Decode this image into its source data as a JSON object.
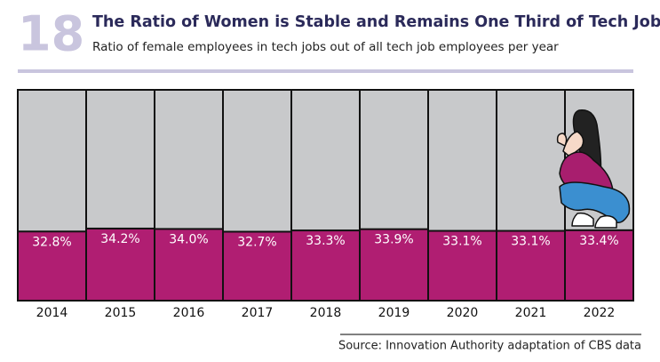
{
  "chart_data": {
    "type": "bar",
    "figure_number": "18",
    "title": "The Ratio of Women is Stable and Remains One Third of Tech Jobs",
    "subtitle": "Ratio of female employees in tech jobs out of all tech job employees per year",
    "categories": [
      "2014",
      "2015",
      "2016",
      "2017",
      "2018",
      "2019",
      "2020",
      "2021",
      "2022"
    ],
    "values": [
      32.8,
      34.2,
      34.0,
      32.7,
      33.3,
      33.9,
      33.1,
      33.1,
      33.4
    ],
    "value_labels": [
      "32.8%",
      "34.2%",
      "34.0%",
      "32.7%",
      "33.3%",
      "33.9%",
      "33.1%",
      "33.1%",
      "33.4%"
    ],
    "color": "#b01e72",
    "background_color": "#c8c9cb",
    "ylim": [
      0,
      100
    ],
    "source": "Source: Innovation Authority adaptation of CBS data"
  }
}
